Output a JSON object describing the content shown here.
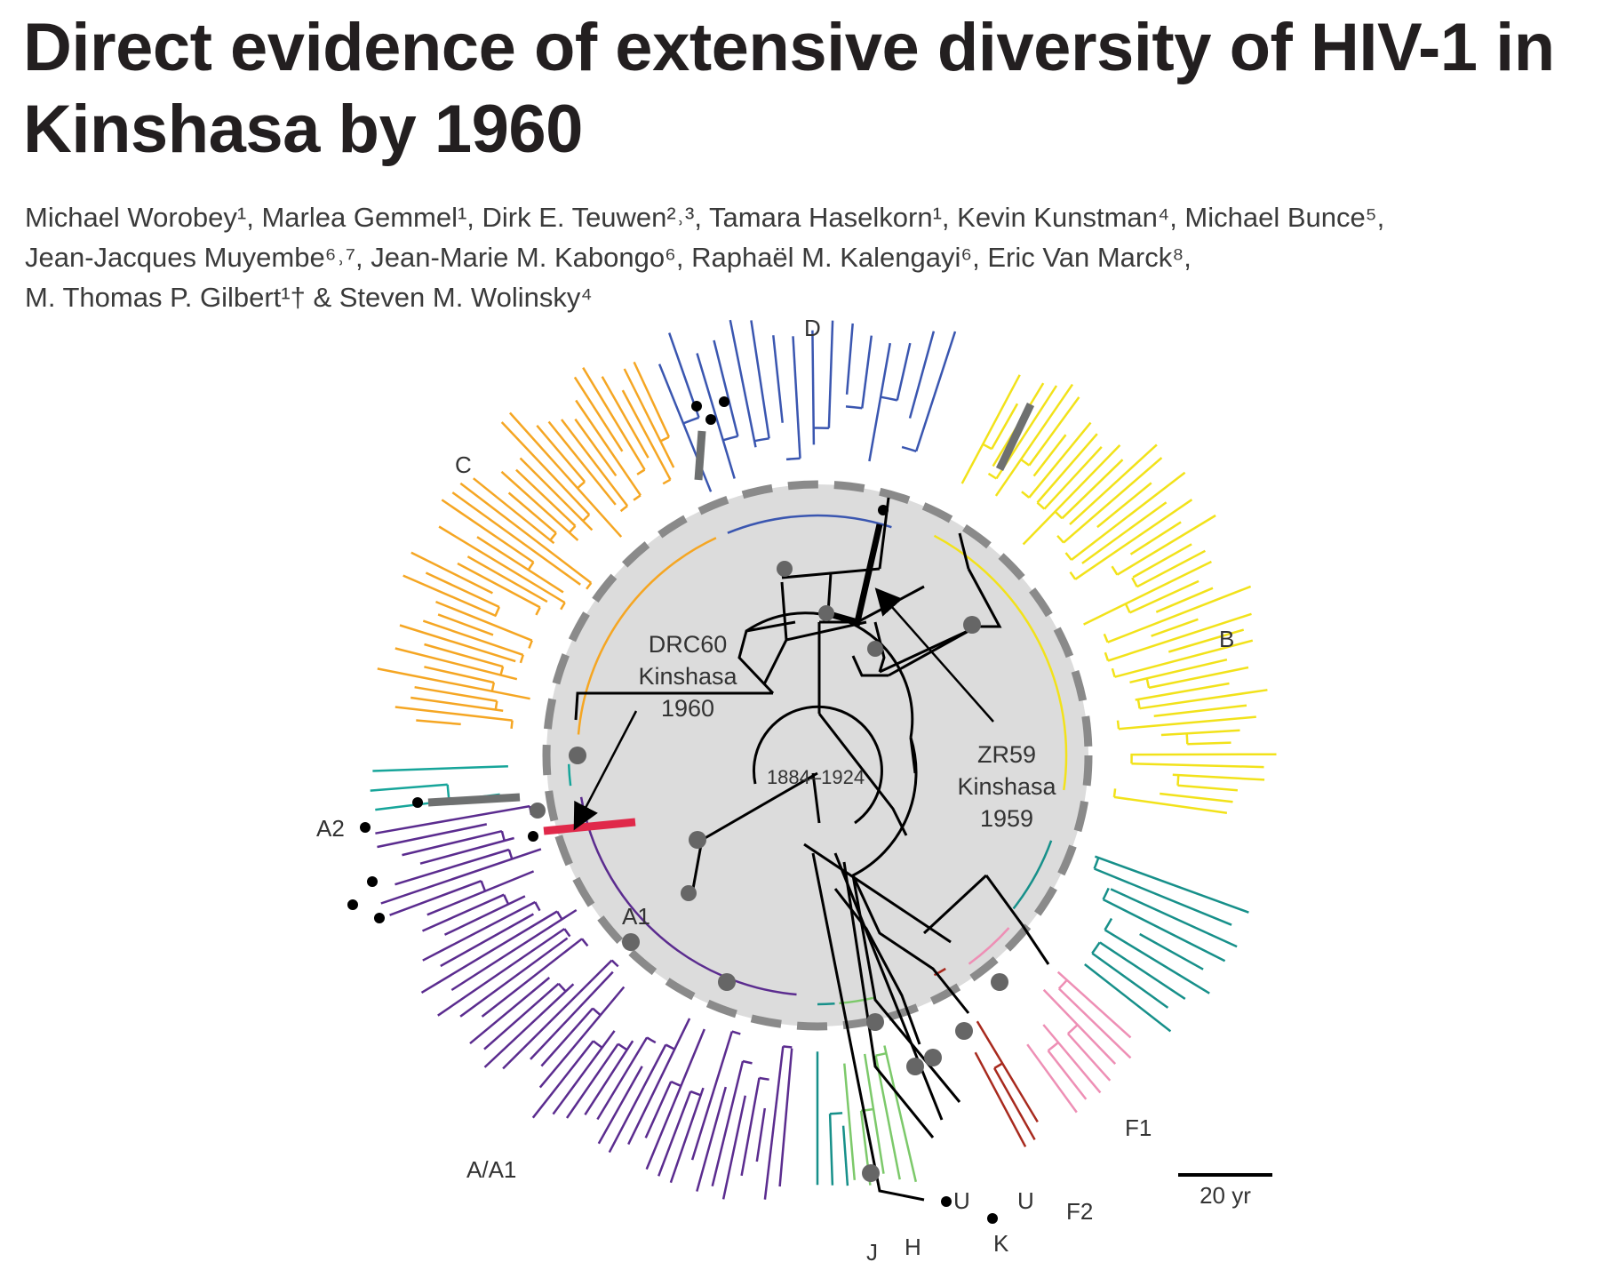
{
  "article": {
    "title_line1": "Direct evidence of extensive diversity of HIV-1 in",
    "title_line2": "Kinshasa by 1960",
    "authors_line1": "Michael Worobey¹, Marlea Gemmel¹, Dirk E. Teuwen²˒³, Tamara Haselkorn¹, Kevin Kunstman⁴, Michael Bunce⁵,",
    "authors_line2": "Jean-Jacques Muyembe⁶˒⁷, Jean-Marie M. Kabongo⁶, Raphaël M. Kalengayi⁶, Eric Van Marck⁸,",
    "authors_line3": "M. Thomas P. Gilbert¹† & Steven M. Wolinsky⁴"
  },
  "figure": {
    "clade_labels": {
      "D": "D",
      "C": "C",
      "B": "B",
      "A2": "A2",
      "A1": "A1",
      "AA1": "A/A1",
      "F1": "F1",
      "F2": "F2",
      "J": "J",
      "H": "H",
      "K": "K",
      "U1": "U",
      "U2": "U"
    },
    "drc60_line1": "DRC60",
    "drc60_line2": "Kinshasa",
    "drc60_line3": "1960",
    "zr59_line1": "ZR59",
    "zr59_line2": "Kinshasa",
    "zr59_line3": "1959",
    "root_date": "1884–1924",
    "scale_label": "20 yr",
    "colors": {
      "C": "#f5a623",
      "D": "#3a56b0",
      "B": "#f2e21a",
      "A": "#5b2c8f",
      "A2": "#17a59a",
      "F1": "#17908a",
      "F2": "#ee8fb5",
      "H": "#7cc96a",
      "J": "#17908a",
      "K": "#a82a1e",
      "DRC60": "#e0294a",
      "backbone": "#000000",
      "disc": "#dcdcdc",
      "ring": "#8a8a8a"
    }
  }
}
